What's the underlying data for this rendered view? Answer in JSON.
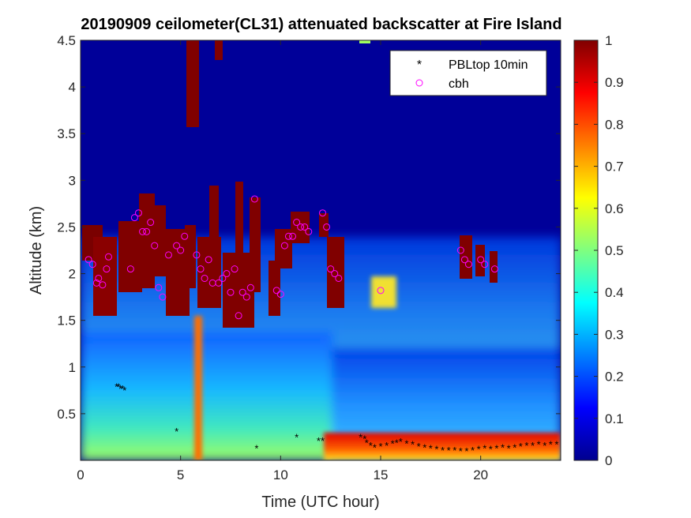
{
  "chart_data": {
    "type": "heatmap",
    "title": "20190909 ceilometer(CL31) attenuated backscatter at Fire Island",
    "xlabel": "Time (UTC hour)",
    "ylabel": "Altitude (km)",
    "xlim": [
      0,
      24
    ],
    "ylim": [
      0,
      4.5
    ],
    "xticks": [
      0,
      5,
      10,
      15,
      20
    ],
    "xtick_labels": [
      "0",
      "5",
      "10",
      "15",
      "20"
    ],
    "yticks": [
      0.5,
      1,
      1.5,
      2,
      2.5,
      3,
      3.5,
      4,
      4.5
    ],
    "ytick_labels": [
      "0.5",
      "1",
      "1.5",
      "2",
      "2.5",
      "3",
      "3.5",
      "4",
      "4.5"
    ],
    "colorbar": {
      "range": [
        0,
        1
      ],
      "ticks": [
        0,
        0.1,
        0.2,
        0.3,
        0.4,
        0.5,
        0.6,
        0.7,
        0.8,
        0.9,
        1
      ],
      "tick_labels": [
        "0",
        "0.1",
        "0.2",
        "0.3",
        "0.4",
        "0.5",
        "0.6",
        "0.7",
        "0.8",
        "0.9",
        "1"
      ],
      "colormap": "jet"
    },
    "legend": {
      "placement": "top-right",
      "entries": [
        {
          "label": "PBLtop 10min",
          "marker": "asterisk",
          "color": "#000000"
        },
        {
          "label": "cbh",
          "marker": "circle",
          "color": "#ff00ff"
        }
      ]
    },
    "series": [
      {
        "name": "PBLtop 10min",
        "x": [
          1.8,
          1.9,
          2.0,
          2.1,
          2.2,
          4.8,
          8.8,
          10.8,
          11.9,
          12.1,
          14.0,
          14.2,
          14.3,
          14.5,
          14.7,
          15.0,
          15.3,
          15.6,
          15.8,
          16.0,
          16.3,
          16.6,
          16.9,
          17.2,
          17.5,
          17.8,
          18.1,
          18.4,
          18.7,
          19.0,
          19.3,
          19.6,
          19.9,
          20.2,
          20.5,
          20.8,
          21.1,
          21.4,
          21.7,
          22.0,
          22.3,
          22.6,
          22.9,
          23.2,
          23.5,
          23.8
        ],
        "y": [
          0.8,
          0.8,
          0.78,
          0.78,
          0.76,
          0.32,
          0.14,
          0.26,
          0.22,
          0.22,
          0.26,
          0.24,
          0.2,
          0.17,
          0.15,
          0.16,
          0.17,
          0.19,
          0.2,
          0.21,
          0.19,
          0.18,
          0.16,
          0.15,
          0.14,
          0.13,
          0.12,
          0.12,
          0.12,
          0.11,
          0.11,
          0.12,
          0.13,
          0.14,
          0.13,
          0.14,
          0.15,
          0.14,
          0.15,
          0.16,
          0.17,
          0.17,
          0.18,
          0.17,
          0.18,
          0.18
        ]
      },
      {
        "name": "cbh",
        "x": [
          0.4,
          0.6,
          0.8,
          0.9,
          1.1,
          1.3,
          1.4,
          2.5,
          2.7,
          2.9,
          3.1,
          3.3,
          3.5,
          3.7,
          3.9,
          4.1,
          4.4,
          4.8,
          5.0,
          5.2,
          5.8,
          6.0,
          6.2,
          6.4,
          6.6,
          6.9,
          7.1,
          7.3,
          7.5,
          7.7,
          7.9,
          8.1,
          8.3,
          8.5,
          8.7,
          9.8,
          10.0,
          10.2,
          10.4,
          10.6,
          10.8,
          11.0,
          11.2,
          11.4,
          12.1,
          12.3,
          12.5,
          12.7,
          12.9,
          15.0,
          19.0,
          19.2,
          19.4,
          20.0,
          20.2,
          20.7
        ],
        "y": [
          2.15,
          2.1,
          1.9,
          1.95,
          1.88,
          2.05,
          2.18,
          2.05,
          2.6,
          2.65,
          2.45,
          2.45,
          2.55,
          2.3,
          1.85,
          1.75,
          2.2,
          2.3,
          2.25,
          2.4,
          2.2,
          2.05,
          1.95,
          2.15,
          1.9,
          1.9,
          1.95,
          2.0,
          1.8,
          2.05,
          1.55,
          1.8,
          1.75,
          1.85,
          2.8,
          1.82,
          1.78,
          2.3,
          2.4,
          2.4,
          2.55,
          2.5,
          2.5,
          2.45,
          2.65,
          2.5,
          2.05,
          2.0,
          1.95,
          1.82,
          2.25,
          2.15,
          2.1,
          2.15,
          2.1,
          2.05
        ]
      }
    ]
  }
}
